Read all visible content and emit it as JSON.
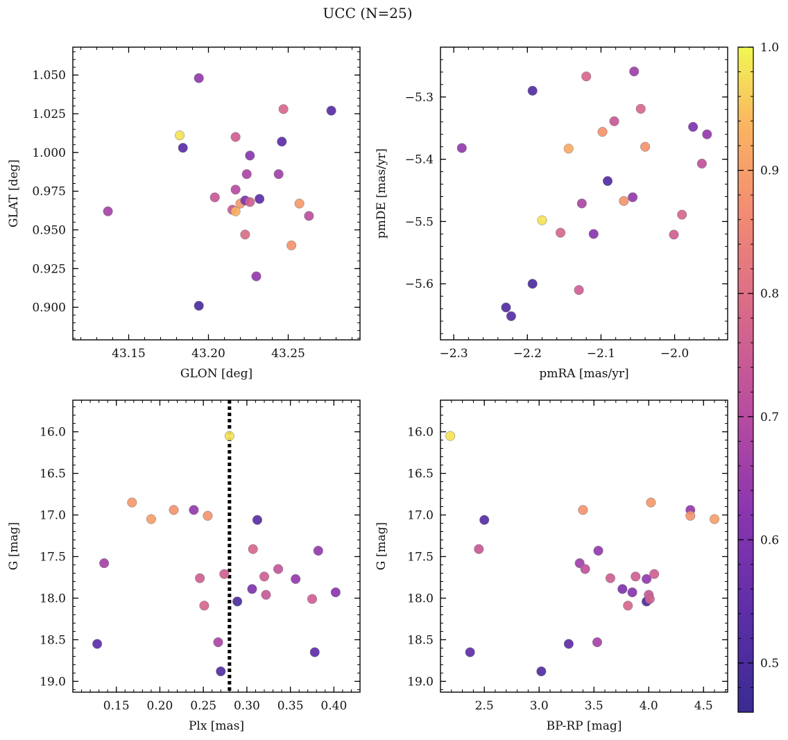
{
  "figure": {
    "title": "UCC (N=25)"
  },
  "colorbar": {
    "ticks": [
      "0.5",
      "0.6",
      "0.7",
      "0.8",
      "0.9",
      "1.0"
    ],
    "min": 0.46,
    "max": 1.0,
    "colormap": "plasma"
  },
  "chart_data": [
    {
      "type": "scatter",
      "xlabel": "GLON [deg]",
      "ylabel": "GLAT [deg]",
      "xlim": [
        43.115,
        43.295
      ],
      "ylim": [
        0.879,
        1.068
      ],
      "xticks": [
        "43.15",
        "43.20",
        "43.25"
      ],
      "yticks": [
        "0.900",
        "0.925",
        "0.950",
        "0.975",
        "1.000",
        "1.025",
        "1.050"
      ],
      "points": [
        {
          "x": 43.137,
          "y": 0.962,
          "c": 0.67
        },
        {
          "x": 43.182,
          "y": 1.011,
          "c": 0.98
        },
        {
          "x": 43.184,
          "y": 1.003,
          "c": 0.53
        },
        {
          "x": 43.194,
          "y": 1.048,
          "c": 0.64
        },
        {
          "x": 43.194,
          "y": 0.901,
          "c": 0.5
        },
        {
          "x": 43.204,
          "y": 0.971,
          "c": 0.74
        },
        {
          "x": 43.215,
          "y": 0.963,
          "c": 0.74
        },
        {
          "x": 43.217,
          "y": 1.01,
          "c": 0.76
        },
        {
          "x": 43.217,
          "y": 0.976,
          "c": 0.7
        },
        {
          "x": 43.217,
          "y": 0.962,
          "c": 0.93
        },
        {
          "x": 43.22,
          "y": 0.967,
          "c": 0.89
        },
        {
          "x": 43.223,
          "y": 0.947,
          "c": 0.79
        },
        {
          "x": 43.223,
          "y": 0.969,
          "c": 0.6
        },
        {
          "x": 43.224,
          "y": 0.986,
          "c": 0.68
        },
        {
          "x": 43.226,
          "y": 0.968,
          "c": 0.76
        },
        {
          "x": 43.226,
          "y": 0.998,
          "c": 0.62
        },
        {
          "x": 43.23,
          "y": 0.92,
          "c": 0.64
        },
        {
          "x": 43.232,
          "y": 0.97,
          "c": 0.54
        },
        {
          "x": 43.244,
          "y": 0.986,
          "c": 0.66
        },
        {
          "x": 43.246,
          "y": 1.007,
          "c": 0.54
        },
        {
          "x": 43.247,
          "y": 1.028,
          "c": 0.78
        },
        {
          "x": 43.252,
          "y": 0.94,
          "c": 0.88
        },
        {
          "x": 43.257,
          "y": 0.967,
          "c": 0.89
        },
        {
          "x": 43.263,
          "y": 0.959,
          "c": 0.71
        },
        {
          "x": 43.277,
          "y": 1.027,
          "c": 0.53
        }
      ]
    },
    {
      "type": "scatter",
      "xlabel": "pmRA [mas/yr]",
      "ylabel": "pmDE [mas/yr]",
      "xlim": [
        -2.318,
        -1.928
      ],
      "ylim": [
        -5.69,
        -5.22
      ],
      "xticks": [
        "−2.3",
        "−2.2",
        "−2.1",
        "−2.0"
      ],
      "yticks": [
        "−5.3",
        "−5.4",
        "−5.5",
        "−5.6"
      ],
      "points": [
        {
          "x": -2.289,
          "y": -5.382,
          "c": 0.64
        },
        {
          "x": -2.229,
          "y": -5.638,
          "c": 0.52
        },
        {
          "x": -2.222,
          "y": -5.652,
          "c": 0.53
        },
        {
          "x": -2.193,
          "y": -5.29,
          "c": 0.52
        },
        {
          "x": -2.193,
          "y": -5.6,
          "c": 0.5
        },
        {
          "x": -2.18,
          "y": -5.498,
          "c": 0.98
        },
        {
          "x": -2.155,
          "y": -5.518,
          "c": 0.78
        },
        {
          "x": -2.144,
          "y": -5.383,
          "c": 0.92
        },
        {
          "x": -2.13,
          "y": -5.61,
          "c": 0.76
        },
        {
          "x": -2.126,
          "y": -5.471,
          "c": 0.68
        },
        {
          "x": -2.12,
          "y": -5.267,
          "c": 0.78
        },
        {
          "x": -2.11,
          "y": -5.52,
          "c": 0.62
        },
        {
          "x": -2.098,
          "y": -5.356,
          "c": 0.88
        },
        {
          "x": -2.091,
          "y": -5.435,
          "c": 0.52
        },
        {
          "x": -2.082,
          "y": -5.339,
          "c": 0.74
        },
        {
          "x": -2.069,
          "y": -5.467,
          "c": 0.88
        },
        {
          "x": -2.057,
          "y": -5.461,
          "c": 0.64
        },
        {
          "x": -2.055,
          "y": -5.259,
          "c": 0.66
        },
        {
          "x": -2.046,
          "y": -5.319,
          "c": 0.78
        },
        {
          "x": -2.04,
          "y": -5.38,
          "c": 0.88
        },
        {
          "x": -2.001,
          "y": -5.521,
          "c": 0.76
        },
        {
          "x": -1.99,
          "y": -5.489,
          "c": 0.78
        },
        {
          "x": -1.975,
          "y": -5.348,
          "c": 0.6
        },
        {
          "x": -1.963,
          "y": -5.407,
          "c": 0.72
        },
        {
          "x": -1.956,
          "y": -5.36,
          "c": 0.64
        }
      ]
    },
    {
      "type": "scatter",
      "xlabel": "Plx [mas]",
      "ylabel": "G [mag]",
      "xlim": [
        0.1,
        0.43
      ],
      "ylim": [
        19.13,
        15.62
      ],
      "xticks": [
        "0.15",
        "0.20",
        "0.25",
        "0.30",
        "0.35",
        "0.40"
      ],
      "yticks": [
        "16.0",
        "16.5",
        "17.0",
        "17.5",
        "18.0",
        "18.5",
        "19.0"
      ],
      "vline": 0.28,
      "points": [
        {
          "x": 0.128,
          "y": 18.55,
          "c": 0.54
        },
        {
          "x": 0.136,
          "y": 17.58,
          "c": 0.67
        },
        {
          "x": 0.168,
          "y": 16.85,
          "c": 0.89
        },
        {
          "x": 0.19,
          "y": 17.05,
          "c": 0.9
        },
        {
          "x": 0.216,
          "y": 16.94,
          "c": 0.88
        },
        {
          "x": 0.239,
          "y": 16.94,
          "c": 0.64
        },
        {
          "x": 0.246,
          "y": 17.76,
          "c": 0.76
        },
        {
          "x": 0.251,
          "y": 18.09,
          "c": 0.78
        },
        {
          "x": 0.255,
          "y": 17.01,
          "c": 0.88
        },
        {
          "x": 0.267,
          "y": 18.53,
          "c": 0.68
        },
        {
          "x": 0.27,
          "y": 18.88,
          "c": 0.52
        },
        {
          "x": 0.274,
          "y": 17.71,
          "c": 0.76
        },
        {
          "x": 0.28,
          "y": 16.05,
          "c": 0.98
        },
        {
          "x": 0.289,
          "y": 18.04,
          "c": 0.5
        },
        {
          "x": 0.306,
          "y": 17.89,
          "c": 0.6
        },
        {
          "x": 0.307,
          "y": 17.41,
          "c": 0.78
        },
        {
          "x": 0.312,
          "y": 17.06,
          "c": 0.53
        },
        {
          "x": 0.32,
          "y": 17.74,
          "c": 0.76
        },
        {
          "x": 0.322,
          "y": 17.96,
          "c": 0.74
        },
        {
          "x": 0.336,
          "y": 17.65,
          "c": 0.73
        },
        {
          "x": 0.356,
          "y": 17.77,
          "c": 0.64
        },
        {
          "x": 0.375,
          "y": 18.01,
          "c": 0.76
        },
        {
          "x": 0.378,
          "y": 18.65,
          "c": 0.54
        },
        {
          "x": 0.382,
          "y": 17.43,
          "c": 0.64
        },
        {
          "x": 0.402,
          "y": 17.93,
          "c": 0.62
        }
      ]
    },
    {
      "type": "scatter",
      "xlabel": "BP-RP [mag]",
      "ylabel": "G [mag]",
      "xlim": [
        2.1,
        4.72
      ],
      "ylim": [
        19.13,
        15.62
      ],
      "xticks": [
        "2.5",
        "3.0",
        "3.5",
        "4.0",
        "4.5"
      ],
      "yticks": [
        "16.0",
        "16.5",
        "17.0",
        "17.5",
        "18.0",
        "18.5",
        "19.0"
      ],
      "points": [
        {
          "x": 2.19,
          "y": 16.05,
          "c": 0.98
        },
        {
          "x": 2.37,
          "y": 18.65,
          "c": 0.54
        },
        {
          "x": 2.45,
          "y": 17.41,
          "c": 0.74
        },
        {
          "x": 2.5,
          "y": 17.06,
          "c": 0.53
        },
        {
          "x": 3.02,
          "y": 18.88,
          "c": 0.52
        },
        {
          "x": 3.27,
          "y": 18.55,
          "c": 0.54
        },
        {
          "x": 3.37,
          "y": 17.58,
          "c": 0.66
        },
        {
          "x": 3.4,
          "y": 16.94,
          "c": 0.88
        },
        {
          "x": 3.42,
          "y": 17.65,
          "c": 0.72
        },
        {
          "x": 3.53,
          "y": 18.53,
          "c": 0.67
        },
        {
          "x": 3.54,
          "y": 17.43,
          "c": 0.64
        },
        {
          "x": 3.65,
          "y": 17.76,
          "c": 0.76
        },
        {
          "x": 3.76,
          "y": 17.89,
          "c": 0.6
        },
        {
          "x": 3.81,
          "y": 18.09,
          "c": 0.78
        },
        {
          "x": 3.85,
          "y": 17.93,
          "c": 0.62
        },
        {
          "x": 3.88,
          "y": 17.74,
          "c": 0.76
        },
        {
          "x": 3.98,
          "y": 18.04,
          "c": 0.5
        },
        {
          "x": 3.98,
          "y": 17.77,
          "c": 0.64
        },
        {
          "x": 4.0,
          "y": 17.96,
          "c": 0.74
        },
        {
          "x": 4.01,
          "y": 18.01,
          "c": 0.76
        },
        {
          "x": 4.02,
          "y": 16.85,
          "c": 0.89
        },
        {
          "x": 4.05,
          "y": 17.71,
          "c": 0.76
        },
        {
          "x": 4.38,
          "y": 16.94,
          "c": 0.64
        },
        {
          "x": 4.38,
          "y": 17.01,
          "c": 0.88
        },
        {
          "x": 4.6,
          "y": 17.05,
          "c": 0.9
        }
      ]
    }
  ]
}
